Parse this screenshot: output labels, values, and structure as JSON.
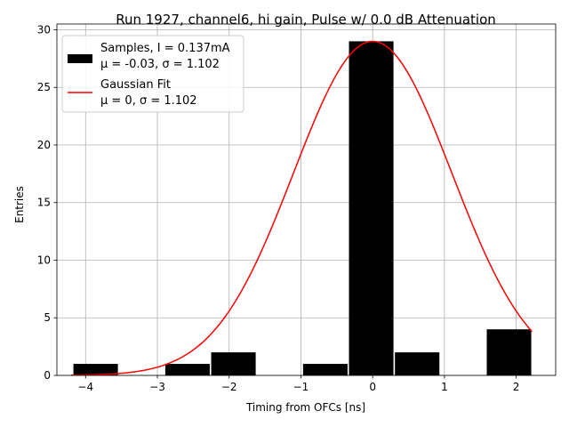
{
  "chart_data": {
    "type": "bar",
    "title": "Run 1927, channel6, hi gain, Pulse w/ 0.0 dB Attenuation",
    "xlabel": "Timing from OFCs [ns]",
    "ylabel": "Entries",
    "xlim": [
      -4.4,
      2.55
    ],
    "ylim": [
      0,
      30.5
    ],
    "xticks": [
      -4,
      -3,
      -2,
      -1,
      0,
      1,
      2
    ],
    "yticks": [
      0,
      5,
      10,
      15,
      20,
      25,
      30
    ],
    "grid": true,
    "bars": [
      {
        "x0": -4.17,
        "x1": -3.55,
        "count": 1
      },
      {
        "x0": -2.89,
        "x1": -2.27,
        "count": 1
      },
      {
        "x0": -2.25,
        "x1": -1.63,
        "count": 2
      },
      {
        "x0": -0.97,
        "x1": -0.35,
        "count": 1
      },
      {
        "x0": -0.33,
        "x1": 0.29,
        "count": 29
      },
      {
        "x0": 0.31,
        "x1": 0.93,
        "count": 2
      },
      {
        "x0": 1.59,
        "x1": 2.21,
        "count": 4
      }
    ],
    "fit": {
      "mu": 0,
      "sigma": 1.102,
      "amplitude": 29,
      "x_start": -4.2,
      "x_end": 2.22
    },
    "legend": {
      "position": "top-left",
      "entries": [
        {
          "line1": "Samples, I = 0.137mA",
          "line2": "μ = -0.03, σ = 1.102",
          "color": "#000000",
          "kind": "bar"
        },
        {
          "line1": "Gaussian Fit",
          "line2": "μ = 0, σ = 1.102",
          "color": "#ff0000",
          "kind": "line"
        }
      ]
    },
    "colors": {
      "bar": "#000000",
      "fit": "#ff0000",
      "grid": "#b0b0b0"
    }
  }
}
